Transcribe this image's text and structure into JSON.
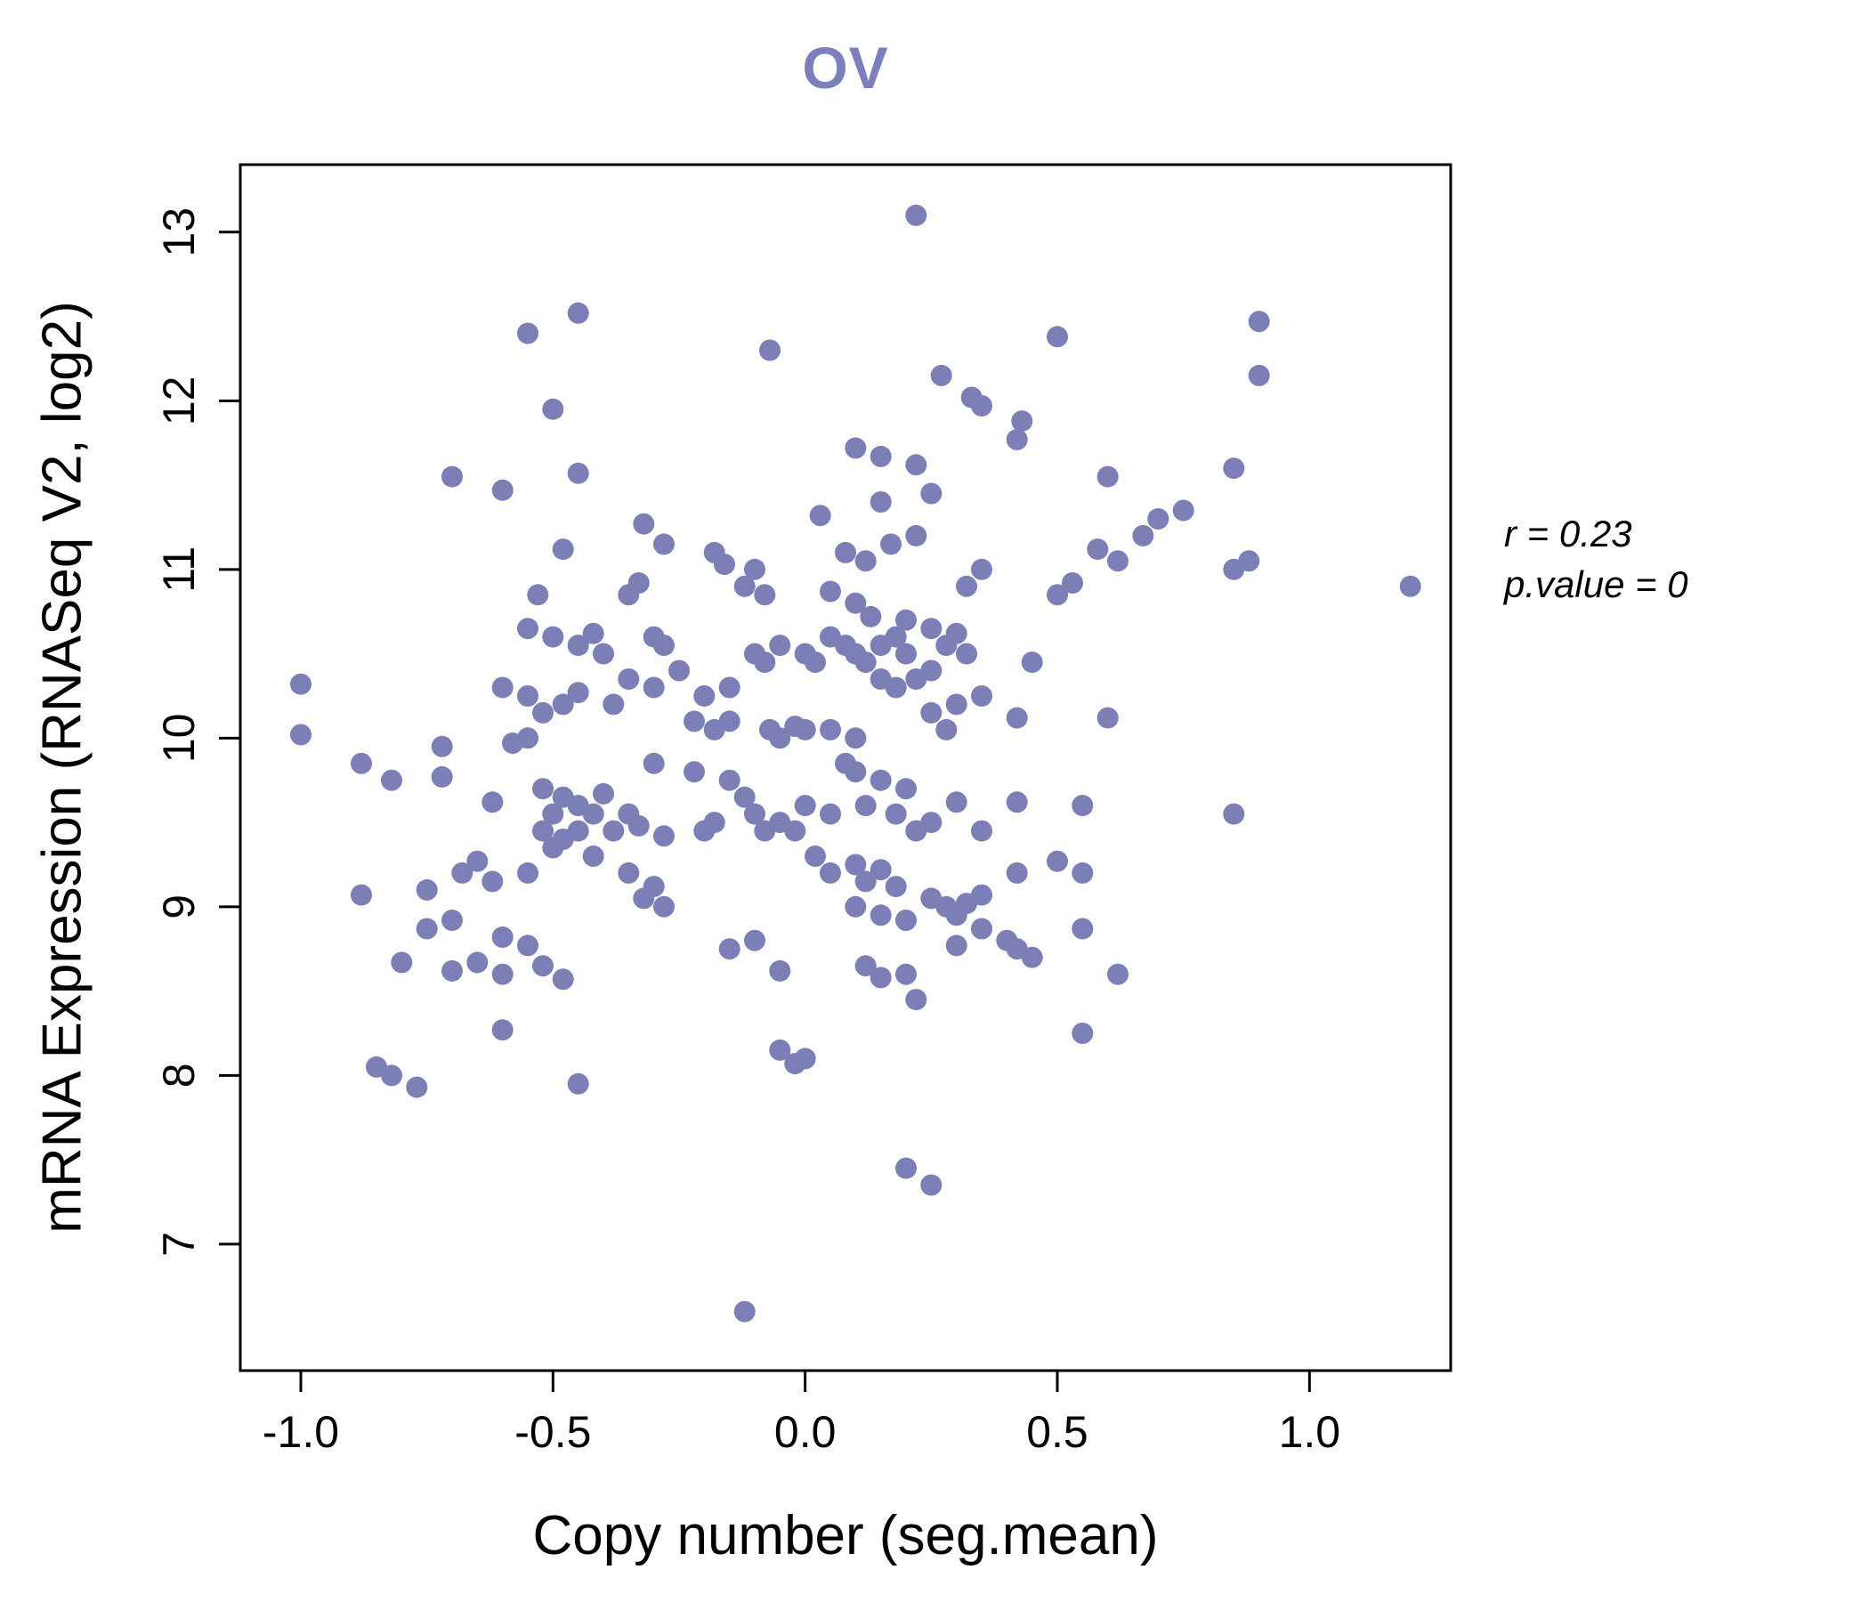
{
  "colors": {
    "title": "#7c80ba",
    "point": "#7b7fb5",
    "axis": "#000000"
  },
  "annotation": {
    "r_line": "r = 0.23",
    "p_line": "p.value = 0"
  },
  "chart_data": {
    "type": "scatter",
    "title": "OV",
    "xlabel": "Copy number (seg.mean)",
    "ylabel": "mRNA Expression (RNASeq V2, log2)",
    "xlim": [
      -1.12,
      1.28
    ],
    "ylim": [
      6.25,
      13.4
    ],
    "grid": false,
    "legend": "none",
    "x_ticks": [
      -1.0,
      -0.5,
      0.0,
      0.5,
      1.0
    ],
    "x_tick_labels": [
      "-1.0",
      "-0.5",
      "0.0",
      "0.5",
      "1.0"
    ],
    "y_ticks": [
      7,
      8,
      9,
      10,
      11,
      12,
      13
    ],
    "y_tick_labels": [
      "7",
      "8",
      "9",
      "10",
      "11",
      "12",
      "13"
    ],
    "point_color": "#7b7fb5",
    "annotations": [
      "r = 0.23",
      "p.value = 0"
    ],
    "points": [
      [
        0.22,
        13.1
      ],
      [
        -0.45,
        12.52
      ],
      [
        -0.55,
        12.4
      ],
      [
        0.5,
        12.38
      ],
      [
        0.9,
        12.47
      ],
      [
        -0.07,
        12.3
      ],
      [
        0.27,
        12.15
      ],
      [
        0.9,
        12.15
      ],
      [
        0.33,
        12.02
      ],
      [
        0.35,
        11.97
      ],
      [
        -0.5,
        11.95
      ],
      [
        0.43,
        11.88
      ],
      [
        0.42,
        11.77
      ],
      [
        -0.7,
        11.55
      ],
      [
        -0.6,
        11.47
      ],
      [
        -0.45,
        11.57
      ],
      [
        0.6,
        11.55
      ],
      [
        0.85,
        11.6
      ],
      [
        0.1,
        11.72
      ],
      [
        0.15,
        11.67
      ],
      [
        0.22,
        11.62
      ],
      [
        0.25,
        11.45
      ],
      [
        0.15,
        11.4
      ],
      [
        0.03,
        11.32
      ],
      [
        -0.32,
        11.27
      ],
      [
        0.22,
        11.2
      ],
      [
        0.7,
        11.3
      ],
      [
        0.75,
        11.35
      ],
      [
        0.67,
        11.2
      ],
      [
        -0.48,
        11.12
      ],
      [
        -0.28,
        11.15
      ],
      [
        -0.18,
        11.1
      ],
      [
        -0.16,
        11.03
      ],
      [
        0.08,
        11.1
      ],
      [
        0.12,
        11.05
      ],
      [
        0.17,
        11.15
      ],
      [
        0.58,
        11.12
      ],
      [
        0.62,
        11.05
      ],
      [
        0.85,
        11.0
      ],
      [
        0.88,
        11.05
      ],
      [
        1.2,
        10.9
      ],
      [
        0.35,
        11.0
      ],
      [
        0.32,
        10.9
      ],
      [
        -0.1,
        11.0
      ],
      [
        -0.12,
        10.9
      ],
      [
        -0.35,
        10.85
      ],
      [
        -0.33,
        10.92
      ],
      [
        -0.53,
        10.85
      ],
      [
        0.05,
        10.87
      ],
      [
        0.1,
        10.8
      ],
      [
        0.5,
        10.85
      ],
      [
        0.53,
        10.92
      ],
      [
        -0.08,
        10.85
      ],
      [
        0.13,
        10.72
      ],
      [
        0.2,
        10.7
      ],
      [
        -0.55,
        10.65
      ],
      [
        -0.5,
        10.6
      ],
      [
        -0.45,
        10.55
      ],
      [
        -0.42,
        10.62
      ],
      [
        -0.4,
        10.5
      ],
      [
        -0.3,
        10.6
      ],
      [
        -0.28,
        10.55
      ],
      [
        -0.05,
        10.55
      ],
      [
        0.0,
        10.5
      ],
      [
        0.02,
        10.45
      ],
      [
        0.05,
        10.6
      ],
      [
        0.08,
        10.55
      ],
      [
        0.1,
        10.5
      ],
      [
        0.12,
        10.45
      ],
      [
        0.15,
        10.55
      ],
      [
        0.18,
        10.6
      ],
      [
        0.2,
        10.5
      ],
      [
        0.28,
        10.55
      ],
      [
        0.3,
        10.62
      ],
      [
        0.32,
        10.5
      ],
      [
        0.25,
        10.65
      ],
      [
        -0.1,
        10.5
      ],
      [
        -0.08,
        10.45
      ],
      [
        0.45,
        10.45
      ],
      [
        -0.35,
        10.35
      ],
      [
        -0.3,
        10.3
      ],
      [
        -0.25,
        10.4
      ],
      [
        -0.6,
        10.3
      ],
      [
        -0.55,
        10.25
      ],
      [
        -0.48,
        10.2
      ],
      [
        -0.52,
        10.15
      ],
      [
        -0.45,
        10.27
      ],
      [
        -0.38,
        10.2
      ],
      [
        -0.2,
        10.25
      ],
      [
        -0.15,
        10.3
      ],
      [
        0.15,
        10.35
      ],
      [
        0.18,
        10.3
      ],
      [
        0.22,
        10.35
      ],
      [
        0.25,
        10.4
      ],
      [
        0.3,
        10.2
      ],
      [
        0.25,
        10.15
      ],
      [
        0.35,
        10.25
      ],
      [
        0.42,
        10.12
      ],
      [
        0.6,
        10.12
      ],
      [
        -1.0,
        10.32
      ],
      [
        0.28,
        10.05
      ],
      [
        -0.02,
        10.07
      ],
      [
        0.0,
        10.05
      ],
      [
        -0.05,
        10.0
      ],
      [
        -0.07,
        10.05
      ],
      [
        0.05,
        10.05
      ],
      [
        0.1,
        10.0
      ],
      [
        -0.15,
        10.1
      ],
      [
        -0.18,
        10.05
      ],
      [
        -0.22,
        10.1
      ],
      [
        -0.55,
        10.0
      ],
      [
        -0.58,
        9.97
      ],
      [
        -0.72,
        9.95
      ],
      [
        -1.0,
        10.02
      ],
      [
        -0.88,
        9.85
      ],
      [
        -0.82,
        9.75
      ],
      [
        -0.72,
        9.77
      ],
      [
        -0.62,
        9.62
      ],
      [
        -0.52,
        9.7
      ],
      [
        -0.48,
        9.65
      ],
      [
        -0.3,
        9.85
      ],
      [
        -0.22,
        9.8
      ],
      [
        0.08,
        9.85
      ],
      [
        0.1,
        9.8
      ],
      [
        0.15,
        9.75
      ],
      [
        0.2,
        9.7
      ],
      [
        -0.15,
        9.75
      ],
      [
        -0.12,
        9.65
      ],
      [
        0.3,
        9.62
      ],
      [
        0.42,
        9.62
      ],
      [
        0.55,
        9.6
      ],
      [
        0.85,
        9.55
      ],
      [
        -0.45,
        9.6
      ],
      [
        -0.4,
        9.67
      ],
      [
        -0.5,
        9.55
      ],
      [
        -0.42,
        9.55
      ],
      [
        -0.35,
        9.55
      ],
      [
        -0.33,
        9.48
      ],
      [
        -0.52,
        9.45
      ],
      [
        -0.48,
        9.4
      ],
      [
        -0.45,
        9.45
      ],
      [
        -0.38,
        9.45
      ],
      [
        -0.28,
        9.42
      ],
      [
        -0.2,
        9.45
      ],
      [
        -0.18,
        9.5
      ],
      [
        -0.1,
        9.55
      ],
      [
        -0.08,
        9.45
      ],
      [
        -0.05,
        9.5
      ],
      [
        0.0,
        9.6
      ],
      [
        -0.02,
        9.45
      ],
      [
        0.05,
        9.55
      ],
      [
        0.12,
        9.6
      ],
      [
        0.18,
        9.55
      ],
      [
        0.22,
        9.45
      ],
      [
        0.25,
        9.5
      ],
      [
        0.35,
        9.45
      ],
      [
        -0.65,
        9.27
      ],
      [
        -0.68,
        9.2
      ],
      [
        -0.62,
        9.15
      ],
      [
        -0.55,
        9.2
      ],
      [
        -0.5,
        9.35
      ],
      [
        -0.42,
        9.3
      ],
      [
        -0.35,
        9.2
      ],
      [
        -0.3,
        9.12
      ],
      [
        0.02,
        9.3
      ],
      [
        0.05,
        9.2
      ],
      [
        0.1,
        9.25
      ],
      [
        0.12,
        9.15
      ],
      [
        0.15,
        9.22
      ],
      [
        0.18,
        9.12
      ],
      [
        0.42,
        9.2
      ],
      [
        0.55,
        9.2
      ],
      [
        0.5,
        9.27
      ],
      [
        -0.75,
        9.1
      ],
      [
        -0.88,
        9.07
      ],
      [
        -0.32,
        9.05
      ],
      [
        -0.28,
        9.0
      ],
      [
        0.1,
        9.0
      ],
      [
        0.15,
        8.95
      ],
      [
        0.2,
        8.92
      ],
      [
        0.25,
        9.05
      ],
      [
        0.28,
        9.0
      ],
      [
        0.32,
        9.02
      ],
      [
        0.35,
        9.07
      ],
      [
        0.3,
        8.95
      ],
      [
        -0.7,
        8.92
      ],
      [
        -0.75,
        8.87
      ],
      [
        -0.6,
        8.82
      ],
      [
        -0.55,
        8.77
      ],
      [
        -0.65,
        8.67
      ],
      [
        -0.7,
        8.62
      ],
      [
        -0.6,
        8.6
      ],
      [
        -0.52,
        8.65
      ],
      [
        -0.48,
        8.57
      ],
      [
        -0.8,
        8.67
      ],
      [
        -0.15,
        8.75
      ],
      [
        -0.1,
        8.8
      ],
      [
        0.35,
        8.87
      ],
      [
        0.4,
        8.8
      ],
      [
        0.42,
        8.75
      ],
      [
        0.45,
        8.7
      ],
      [
        0.3,
        8.77
      ],
      [
        -0.05,
        8.62
      ],
      [
        0.12,
        8.65
      ],
      [
        0.15,
        8.58
      ],
      [
        0.2,
        8.6
      ],
      [
        0.62,
        8.6
      ],
      [
        0.55,
        8.87
      ],
      [
        0.22,
        8.45
      ],
      [
        -0.6,
        8.27
      ],
      [
        0.55,
        8.25
      ],
      [
        -0.05,
        8.15
      ],
      [
        0.0,
        8.1
      ],
      [
        -0.02,
        8.07
      ],
      [
        -0.85,
        8.05
      ],
      [
        -0.82,
        8.0
      ],
      [
        -0.77,
        7.93
      ],
      [
        -0.45,
        7.95
      ],
      [
        0.2,
        7.45
      ],
      [
        0.25,
        7.35
      ],
      [
        -0.12,
        6.6
      ]
    ]
  }
}
